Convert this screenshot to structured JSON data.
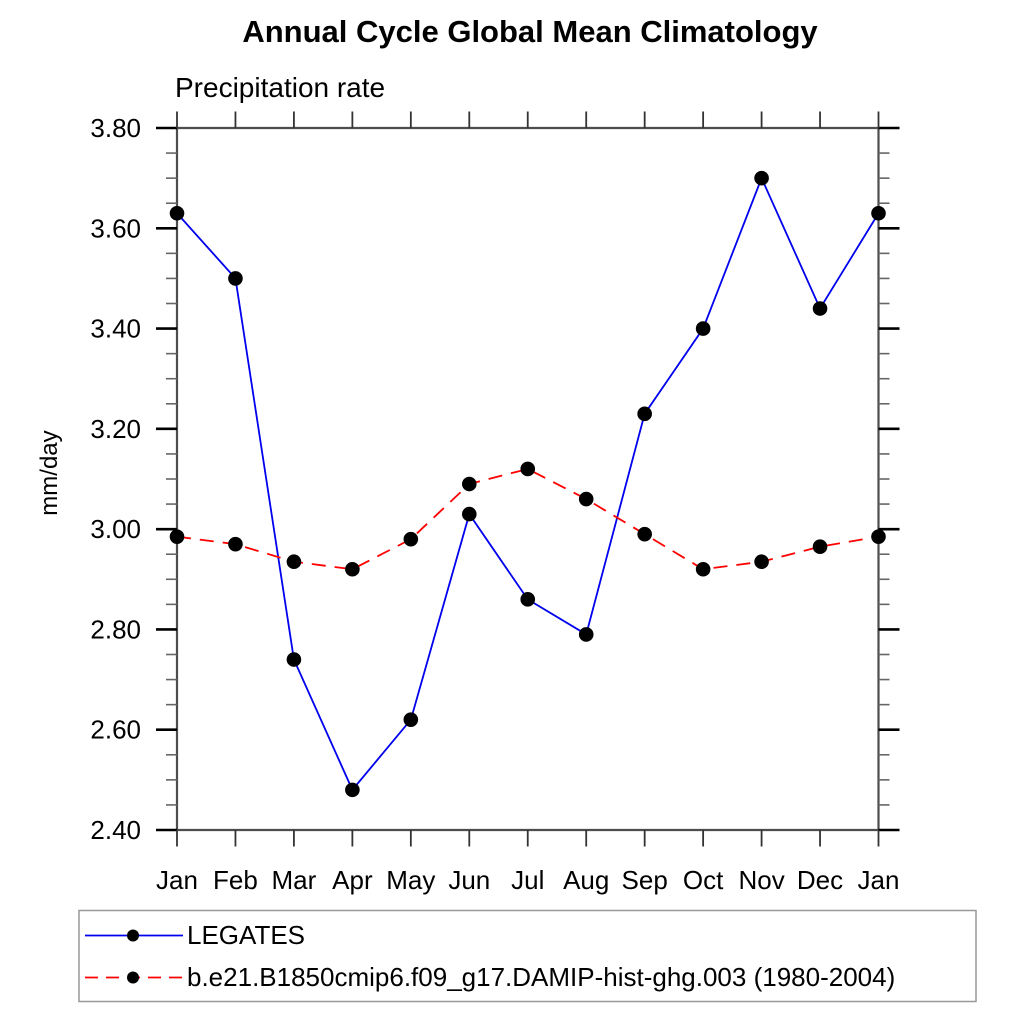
{
  "chart_data": {
    "type": "line",
    "title": "Annual Cycle Global Mean Climatology",
    "subtitle": "Precipitation rate",
    "ylabel": "mm/day",
    "categories": [
      "Jan",
      "Feb",
      "Mar",
      "Apr",
      "May",
      "Jun",
      "Jul",
      "Aug",
      "Sep",
      "Oct",
      "Nov",
      "Dec",
      "Jan"
    ],
    "series": [
      {
        "name": "LEGATES",
        "color": "#0000ee",
        "line_style": "solid",
        "marker": "black-dot",
        "values": [
          3.63,
          3.5,
          2.74,
          2.48,
          2.62,
          3.03,
          2.86,
          2.79,
          3.23,
          3.4,
          3.7,
          3.44,
          3.63
        ]
      },
      {
        "name": "b.e21.B1850cmip6.f09_g17.DAMIP-hist-ghg.003 (1980-2004)",
        "color": "#ff0000",
        "line_style": "dashed",
        "marker": "black-dot",
        "values": [
          2.985,
          2.97,
          2.935,
          2.92,
          2.98,
          3.09,
          3.12,
          3.06,
          2.99,
          2.92,
          2.935,
          2.965,
          2.985
        ]
      }
    ],
    "ylim": [
      2.4,
      3.8
    ],
    "ytick_major_step": 0.2,
    "ytick_minor_step": 0.05,
    "ytick_labels": [
      "2.40",
      "2.60",
      "2.80",
      "3.00",
      "3.20",
      "3.40",
      "3.60",
      "3.80"
    ],
    "grid": false,
    "legend_position": "bottom-left",
    "axis_color": "#4d4d4d",
    "marker_color": "#000000"
  }
}
